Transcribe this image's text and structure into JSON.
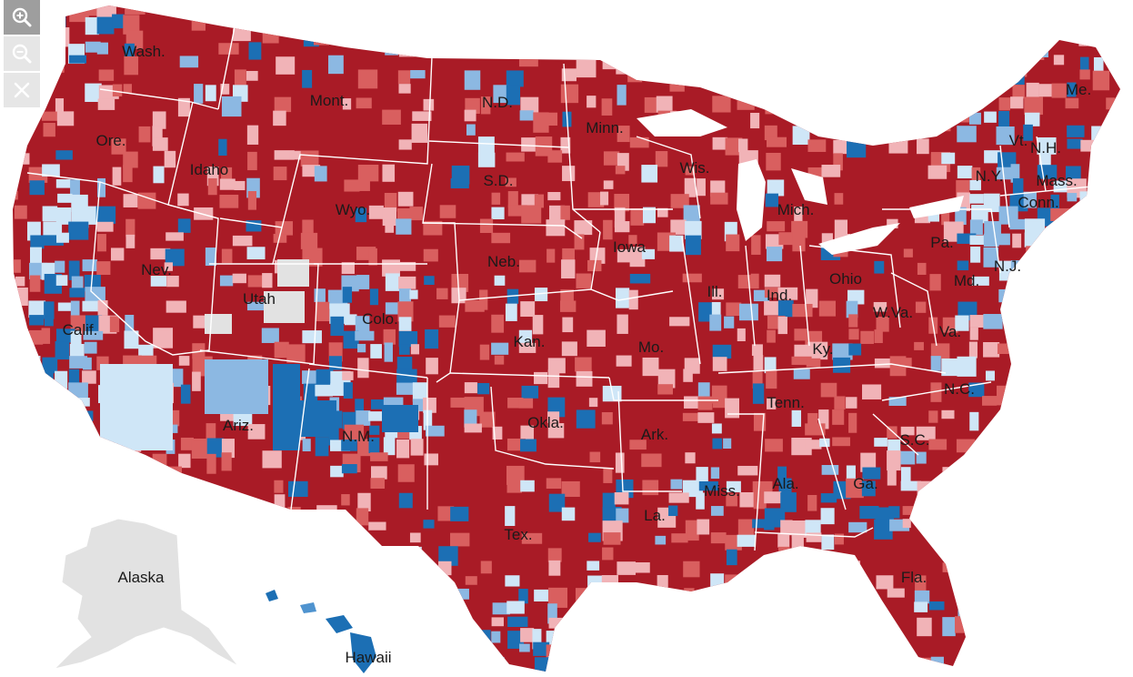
{
  "controls": {
    "zoom_in_icon": "zoom-in-magnifier",
    "zoom_out_icon": "zoom-out-magnifier",
    "close_icon": "close-x"
  },
  "colors": {
    "strong_republican": "#a91b26",
    "republican": "#d95f5f",
    "lean_republican": "#f1b3b7",
    "lean_democrat": "#cfe6f7",
    "democrat": "#8cb8e2",
    "strong_democrat": "#1c6fb4",
    "no_data": "#e2e2e2",
    "state_border": "#ffffff"
  },
  "states": [
    {
      "id": "wa",
      "label": "Wash."
    },
    {
      "id": "or",
      "label": "Ore."
    },
    {
      "id": "ca",
      "label": "Calif."
    },
    {
      "id": "nv",
      "label": "Nev."
    },
    {
      "id": "id",
      "label": "Idaho"
    },
    {
      "id": "mt",
      "label": "Mont."
    },
    {
      "id": "wy",
      "label": "Wyo."
    },
    {
      "id": "ut",
      "label": "Utah"
    },
    {
      "id": "az",
      "label": "Ariz."
    },
    {
      "id": "co",
      "label": "Colo."
    },
    {
      "id": "nm",
      "label": "N.M."
    },
    {
      "id": "nd",
      "label": "N.D."
    },
    {
      "id": "sd",
      "label": "S.D."
    },
    {
      "id": "ne",
      "label": "Neb."
    },
    {
      "id": "ks",
      "label": "Kan."
    },
    {
      "id": "ok",
      "label": "Okla."
    },
    {
      "id": "tx",
      "label": "Tex."
    },
    {
      "id": "mn",
      "label": "Minn."
    },
    {
      "id": "ia",
      "label": "Iowa"
    },
    {
      "id": "mo",
      "label": "Mo."
    },
    {
      "id": "ar",
      "label": "Ark."
    },
    {
      "id": "la",
      "label": "La."
    },
    {
      "id": "wi",
      "label": "Wis."
    },
    {
      "id": "il",
      "label": "Ill."
    },
    {
      "id": "mi",
      "label": "Mich."
    },
    {
      "id": "in",
      "label": "Ind."
    },
    {
      "id": "oh",
      "label": "Ohio"
    },
    {
      "id": "ky",
      "label": "Ky."
    },
    {
      "id": "tn",
      "label": "Tenn."
    },
    {
      "id": "ms",
      "label": "Miss."
    },
    {
      "id": "al",
      "label": "Ala."
    },
    {
      "id": "ga",
      "label": "Ga."
    },
    {
      "id": "fl",
      "label": "Fla."
    },
    {
      "id": "sc",
      "label": "S.C."
    },
    {
      "id": "nc",
      "label": "N.C."
    },
    {
      "id": "va",
      "label": "Va."
    },
    {
      "id": "wv",
      "label": "W.Va."
    },
    {
      "id": "pa",
      "label": "Pa."
    },
    {
      "id": "ny",
      "label": "N.Y."
    },
    {
      "id": "md",
      "label": "Md."
    },
    {
      "id": "nj",
      "label": "N.J."
    },
    {
      "id": "ct",
      "label": "Conn."
    },
    {
      "id": "ma",
      "label": "Mass."
    },
    {
      "id": "vt",
      "label": "Vt."
    },
    {
      "id": "nh",
      "label": "N.H."
    },
    {
      "id": "me",
      "label": "Me."
    }
  ],
  "insets": {
    "alaska": {
      "label": "Alaska"
    },
    "hawaii": {
      "label": "Hawaii"
    }
  }
}
